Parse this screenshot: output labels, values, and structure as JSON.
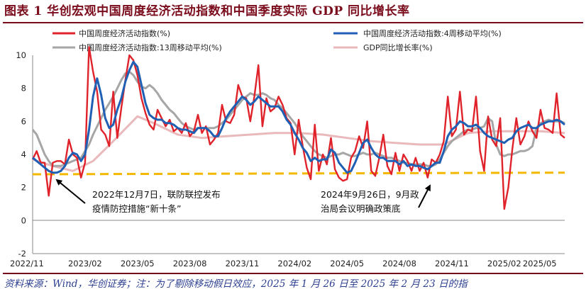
{
  "figure": {
    "title": "图表 1   华创宏观中国周度经济活动指数和中国季度实际 GDP 同比增长率",
    "source": "资料来源：Wind，华创证券；注：为了剔除移动假日效应，2025 年 1 月 26 日至 2025 年 2 月 23 日的指"
  },
  "colors": {
    "brand": "#7a0c1c",
    "source_text": "#2c3e8f",
    "weekly": "#e0222b",
    "ma4": "#1f5fb4",
    "ma13": "#a6a6a6",
    "gdp": "#e9b9bc",
    "reference": "#f5b800"
  },
  "chart_data": {
    "type": "line",
    "ylim": [
      -2,
      10
    ],
    "yticks": [
      -2,
      0,
      2,
      4,
      6,
      8,
      10
    ],
    "xlim": [
      0,
      132
    ],
    "xticks": [
      {
        "x": 0,
        "label": "2022/11"
      },
      {
        "x": 13,
        "label": "2023/02"
      },
      {
        "x": 26,
        "label": "2023/05"
      },
      {
        "x": 39,
        "label": "2023/08"
      },
      {
        "x": 52,
        "label": "2023/11"
      },
      {
        "x": 65,
        "label": "2024/02"
      },
      {
        "x": 78,
        "label": "2024/05"
      },
      {
        "x": 91,
        "label": "2024/08"
      },
      {
        "x": 104,
        "label": "2024/11"
      },
      {
        "x": 117,
        "label": "2025/02"
      },
      {
        "x": 130,
        "label": "2025/05"
      }
    ],
    "grid": false,
    "legend": "top",
    "series": [
      {
        "name": "中国周度经济活动指数(%)",
        "key": "weekly",
        "x": [
          0,
          1,
          2,
          3,
          4,
          5,
          6,
          7,
          8,
          9,
          10,
          11,
          12,
          13,
          14,
          15,
          16,
          17,
          18,
          19,
          20,
          21,
          22,
          23,
          24,
          25,
          26,
          27,
          28,
          29,
          30,
          31,
          32,
          33,
          34,
          35,
          36,
          37,
          38,
          39,
          40,
          41,
          42,
          43,
          44,
          45,
          46,
          47,
          48,
          49,
          50,
          51,
          52,
          53,
          54,
          55,
          56,
          57,
          58,
          59,
          60,
          61,
          62,
          63,
          64,
          65,
          66,
          67,
          68,
          69,
          70,
          71,
          72,
          73,
          74,
          75,
          76,
          77,
          78,
          79,
          80,
          81,
          82,
          83,
          84,
          85,
          86,
          87,
          88,
          89,
          90,
          91,
          92,
          93,
          94,
          95,
          96,
          97,
          98,
          99,
          100,
          101,
          102,
          103,
          104,
          105,
          106,
          107,
          108,
          109,
          110,
          111,
          112,
          113,
          114,
          115,
          116,
          117,
          118,
          119,
          120,
          121,
          122,
          123,
          124,
          125,
          126,
          127,
          128,
          129,
          130,
          131,
          132
        ],
        "y": [
          3.7,
          4.2,
          3.5,
          3.5,
          1.5,
          3.5,
          3.6,
          3.6,
          3.4,
          4.9,
          4.0,
          3.8,
          2.6,
          3.5,
          10.5,
          9.0,
          7.8,
          5.5,
          5.2,
          4.5,
          7.8,
          5.0,
          6.8,
          8.5,
          10.0,
          9.7,
          8.8,
          7.4,
          6.5,
          5.8,
          5.5,
          6.7,
          6.2,
          5.7,
          6.1,
          5.4,
          5.6,
          5.3,
          5.9,
          5.1,
          5.4,
          6.4,
          5.3,
          5.7,
          4.6,
          4.9,
          5.3,
          7.0,
          6.0,
          5.9,
          6.4,
          8.2,
          7.5,
          7.4,
          6.0,
          7.5,
          9.4,
          5.7,
          7.4,
          6.6,
          6.8,
          7.5,
          7.0,
          6.2,
          5.9,
          4.0,
          6.1,
          4.5,
          3.2,
          2.5,
          5.8,
          3.0,
          4.0,
          3.4,
          5.0,
          3.1,
          2.6,
          2.4,
          2.5,
          3.8,
          4.2,
          5.1,
          4.4,
          6.0,
          3.0,
          2.7,
          3.8,
          5.2,
          3.3,
          2.8,
          4.1,
          3.0,
          4.0,
          3.6,
          3.0,
          3.8,
          3.0,
          3.5,
          2.6,
          3.7,
          3.5,
          4.0,
          4.8,
          7.5,
          5.1,
          5.5,
          7.8,
          5.2,
          5.5,
          5.4,
          7.5,
          4.2,
          3.0,
          6.3,
          4.9,
          4.5,
          6.2,
          0.7,
          2.0,
          4.3,
          6.2,
          4.6,
          5.1,
          6.0,
          5.4,
          5.0,
          6.7,
          5.6,
          5.5,
          5.3,
          7.7,
          5.2,
          5.0
        ]
      },
      {
        "name": "中国周度经济活动指数:4周移动平均(%)",
        "key": "ma4",
        "x": [
          0,
          1,
          2,
          3,
          4,
          5,
          6,
          7,
          8,
          9,
          10,
          11,
          12,
          13,
          14,
          15,
          16,
          17,
          18,
          19,
          20,
          21,
          22,
          23,
          24,
          25,
          26,
          27,
          28,
          29,
          30,
          31,
          32,
          33,
          34,
          35,
          36,
          37,
          38,
          39,
          40,
          41,
          42,
          43,
          44,
          45,
          46,
          47,
          48,
          49,
          50,
          51,
          52,
          53,
          54,
          55,
          56,
          57,
          58,
          59,
          60,
          61,
          62,
          63,
          64,
          65,
          66,
          67,
          68,
          69,
          70,
          71,
          72,
          73,
          74,
          75,
          76,
          77,
          78,
          79,
          80,
          81,
          82,
          83,
          84,
          85,
          86,
          87,
          88,
          89,
          90,
          91,
          92,
          93,
          94,
          95,
          96,
          97,
          98,
          99,
          100,
          101,
          102,
          103,
          104,
          105,
          106,
          107,
          108,
          109,
          110,
          111,
          112,
          113,
          114,
          115,
          116,
          117,
          118,
          119,
          120,
          121,
          122,
          123,
          124,
          125,
          126,
          127,
          128,
          129,
          130,
          131,
          132
        ],
        "y": [
          3.8,
          3.6,
          3.4,
          3.2,
          3.0,
          2.9,
          2.9,
          3.0,
          3.3,
          3.8,
          4.1,
          4.0,
          3.6,
          4.0,
          5.5,
          7.5,
          8.6,
          7.6,
          6.2,
          5.6,
          5.8,
          6.7,
          7.4,
          8.4,
          9.1,
          9.6,
          9.3,
          8.2,
          7.1,
          6.4,
          6.2,
          6.1,
          6.1,
          5.9,
          5.9,
          5.8,
          5.6,
          5.5,
          5.5,
          5.4,
          5.3,
          5.6,
          5.6,
          5.6,
          5.4,
          5.1,
          5.1,
          5.6,
          6.2,
          6.6,
          6.9,
          7.2,
          7.5,
          7.3,
          7.0,
          7.2,
          7.5,
          7.3,
          7.1,
          6.9,
          6.9,
          6.9,
          6.6,
          6.1,
          5.8,
          5.3,
          4.9,
          4.4,
          4.1,
          3.6,
          3.8,
          3.6,
          3.7,
          3.7,
          4.3,
          4.1,
          3.5,
          3.2,
          2.9,
          3.0,
          3.5,
          4.1,
          4.7,
          4.9,
          4.4,
          4.0,
          3.8,
          3.8,
          3.6,
          3.6,
          3.6,
          3.4,
          3.6,
          3.3,
          3.4,
          3.3,
          3.3,
          3.2,
          3.1,
          3.3,
          3.5,
          3.5,
          4.2,
          5.1,
          5.5,
          5.7,
          6.0,
          5.9,
          5.7,
          5.7,
          5.8,
          5.6,
          5.3,
          5.1,
          5.0,
          4.9,
          4.8,
          4.7,
          4.9,
          5.0,
          5.4,
          5.6,
          5.7,
          5.8,
          5.6,
          5.6,
          5.8,
          5.9,
          6.0,
          6.0,
          6.1,
          6.0,
          5.8
        ]
      },
      {
        "name": "中国周度经济活动指数:13周移动平均(%)",
        "key": "ma13",
        "x": [
          0,
          1,
          2,
          3,
          4,
          5,
          6,
          7,
          8,
          9,
          10,
          11,
          12,
          13,
          14,
          15,
          16,
          17,
          18,
          19,
          20,
          21,
          22,
          23,
          24,
          25,
          26,
          27,
          28,
          29,
          30,
          31,
          32,
          33,
          34,
          35,
          36,
          37,
          38,
          39,
          40,
          41,
          42,
          43,
          44,
          45,
          46,
          47,
          48,
          49,
          50,
          51,
          52,
          53,
          54,
          55,
          56,
          57,
          58,
          59,
          60,
          61,
          62,
          63,
          64,
          65,
          66,
          67,
          68,
          69,
          70,
          71,
          72,
          73,
          74,
          75,
          76,
          77,
          78,
          79,
          80,
          81,
          82,
          83,
          84,
          85,
          86,
          87,
          88,
          89,
          90,
          91,
          92,
          93,
          94,
          95,
          96,
          97,
          98,
          99,
          100,
          101,
          102,
          103,
          104,
          105,
          106,
          107,
          108,
          109,
          110,
          111,
          112,
          113,
          114,
          115,
          116,
          117,
          118,
          119,
          120,
          121,
          122,
          123,
          124,
          125,
          126,
          127,
          128,
          129,
          130,
          131,
          132
        ],
        "y": [
          5.5,
          5.2,
          4.6,
          4.0,
          3.6,
          3.3,
          3.3,
          3.3,
          3.4,
          3.5,
          3.6,
          3.7,
          3.8,
          4.2,
          4.6,
          5.2,
          5.7,
          6.2,
          6.7,
          7.1,
          7.5,
          8.0,
          8.5,
          8.9,
          9.0,
          8.8,
          8.4,
          8.1,
          8.0,
          8.2,
          8.0,
          7.7,
          7.3,
          7.0,
          6.7,
          6.5,
          6.2,
          5.9,
          5.7,
          5.6,
          5.5,
          5.6,
          5.6,
          5.6,
          5.6,
          5.6,
          5.7,
          5.9,
          6.1,
          6.4,
          6.7,
          7.0,
          7.3,
          7.5,
          7.7,
          7.6,
          7.6,
          7.7,
          7.6,
          7.4,
          7.3,
          7.0,
          6.8,
          6.5,
          6.2,
          5.9,
          5.5,
          5.1,
          4.8,
          4.5,
          4.2,
          4.0,
          3.9,
          3.8,
          3.9,
          4.0,
          4.0,
          4.1,
          4.0,
          3.9,
          3.9,
          4.0,
          4.1,
          4.0,
          4.0,
          4.1,
          4.0,
          3.9,
          3.8,
          3.8,
          3.7,
          3.6,
          3.5,
          3.5,
          3.4,
          3.4,
          3.4,
          3.4,
          3.3,
          3.3,
          3.4,
          3.7,
          4.1,
          4.5,
          4.8,
          5.0,
          5.2,
          5.4,
          5.5,
          5.5,
          5.6,
          5.6,
          5.7,
          6.2,
          6.0,
          4.6,
          4.0,
          3.9,
          4.0,
          4.0,
          4.1,
          4.2,
          4.2,
          4.3,
          4.5,
          5.6,
          5.9,
          6.0,
          6.1,
          6.0,
          6.0,
          6.0,
          5.9
        ]
      },
      {
        "name": "GDP同比增长率(%)",
        "key": "gdp",
        "x": [
          0,
          5,
          10,
          15,
          20,
          26,
          30,
          36,
          42,
          48,
          54,
          60,
          66,
          72,
          78,
          84,
          90,
          96,
          102,
          108,
          114,
          120,
          126,
          132
        ],
        "y": [
          3.7,
          3.3,
          3.0,
          3.6,
          4.8,
          6.3,
          5.9,
          5.2,
          5.0,
          5.1,
          5.2,
          5.3,
          5.3,
          5.2,
          5.0,
          4.8,
          4.7,
          4.6,
          4.6,
          5.3,
          5.4,
          5.4,
          5.4,
          5.3
        ]
      },
      {
        "name": "",
        "key": "reference",
        "x": [
          0,
          132
        ],
        "y": [
          2.8,
          2.9
        ]
      }
    ],
    "annotations": [
      {
        "lines": [
          "2022年12月7日，联防联控发布",
          "疫情防控措施“新十条”"
        ],
        "arrow_to": [
          3,
          2.6
        ]
      },
      {
        "lines": [
          "2024年9月26日，9月政",
          "治局会议明确政策底"
        ],
        "arrow_to": [
          100,
          2.8
        ]
      }
    ]
  }
}
